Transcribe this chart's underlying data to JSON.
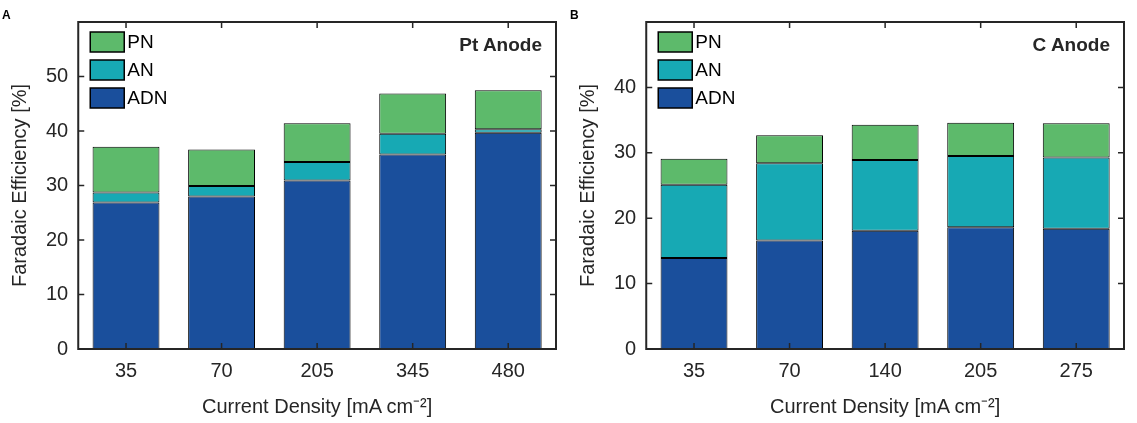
{
  "chart_data": [
    {
      "type": "bar",
      "title": "Pt Anode",
      "annotations": [
        "A"
      ],
      "xlabel": "Current Density [mA cm⁻²]",
      "ylabel": "Faradaic Efficiency [%]",
      "categories": [
        "35",
        "70",
        "205",
        "345",
        "480"
      ],
      "stacked": true,
      "ylim": [
        0,
        60
      ],
      "yticks": [
        0,
        10,
        20,
        30,
        40,
        50
      ],
      "legend": "top left",
      "grid": false,
      "series": [
        {
          "name": "ADN",
          "color": "#1a4f9c",
          "values": [
            26.9,
            28.0,
            30.9,
            35.7,
            39.7
          ]
        },
        {
          "name": "AN",
          "color": "#17a9b4",
          "values": [
            1.8,
            1.9,
            3.4,
            3.8,
            0.6
          ]
        },
        {
          "name": "PN",
          "color": "#5dba6b",
          "values": [
            8.4,
            6.7,
            7.1,
            7.4,
            7.2
          ]
        }
      ]
    },
    {
      "type": "bar",
      "title": "C Anode",
      "annotations": [
        "B"
      ],
      "xlabel": "Current Density [mA cm⁻²]",
      "ylabel": "Faradaic Efficiency [%]",
      "categories": [
        "35",
        "70",
        "140",
        "205",
        "275"
      ],
      "stacked": true,
      "ylim": [
        0,
        50
      ],
      "yticks": [
        0,
        10,
        20,
        30,
        40
      ],
      "legend": "top left",
      "grid": false,
      "series": [
        {
          "name": "ADN",
          "color": "#1a4f9c",
          "values": [
            13.9,
            16.6,
            18.1,
            18.6,
            18.4
          ]
        },
        {
          "name": "AN",
          "color": "#17a9b4",
          "values": [
            11.2,
            11.8,
            10.8,
            10.9,
            10.9
          ]
        },
        {
          "name": "PN",
          "color": "#5dba6b",
          "values": [
            4.0,
            4.3,
            5.4,
            5.1,
            5.2
          ]
        }
      ]
    }
  ]
}
